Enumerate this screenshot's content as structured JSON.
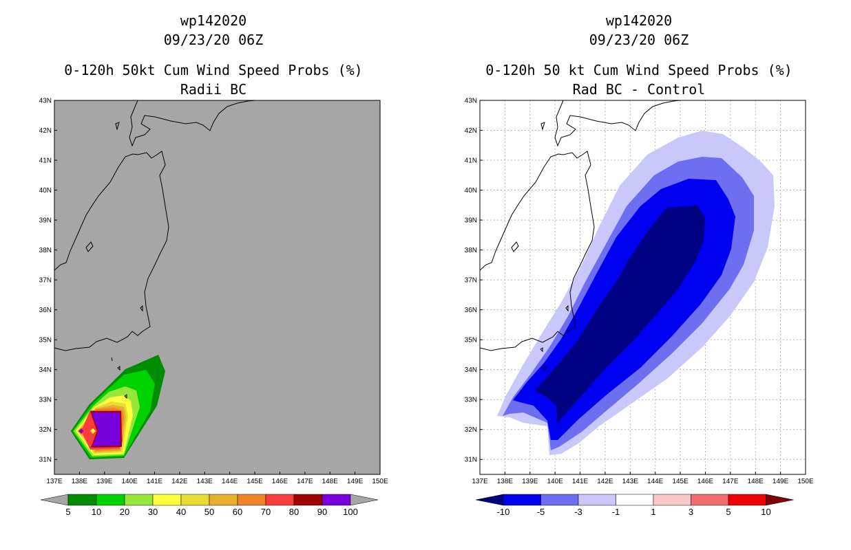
{
  "left_panel": {
    "title_line1": "wp142020",
    "title_line2": "09/23/20 06Z",
    "title_line3": "0-120h 50kt Cum Wind Speed Probs (%)",
    "title_line4": "Radii BC",
    "background_color": "#a6a6a6",
    "colorbar": {
      "labels": [
        "5",
        "10",
        "20",
        "30",
        "40",
        "50",
        "60",
        "70",
        "80",
        "90",
        "100"
      ],
      "colors": [
        "#008c00",
        "#00d200",
        "#96e63c",
        "#ffff3c",
        "#e6dc32",
        "#e6af2d",
        "#f08228",
        "#fa3c3c",
        "#a00000",
        "#7800dc"
      ]
    }
  },
  "right_panel": {
    "title_line1": "wp142020",
    "title_line2": "09/23/20 06Z",
    "title_line3": "0-120h 50 kt Cum Wind Speed Probs (%)",
    "title_line4": "Rad BC - Control",
    "background_color": "#ffffff",
    "colorbar": {
      "labels": [
        "-10",
        "-5",
        "-3",
        "-1",
        "1",
        "3",
        "5",
        "10"
      ],
      "colors": [
        "#000082",
        "#0000f0",
        "#6e6ef0",
        "#c8c8fa",
        "#ffffff",
        "#fac8c8",
        "#f06e6e",
        "#f00000",
        "#820000"
      ]
    }
  },
  "axes": {
    "lon_labels": [
      "137E",
      "138E",
      "139E",
      "140E",
      "141E",
      "142E",
      "143E",
      "144E",
      "145E",
      "146E",
      "147E",
      "148E",
      "149E",
      "150E"
    ],
    "lat_labels": [
      "31N",
      "32N",
      "33N",
      "34N",
      "35N",
      "36N",
      "37N",
      "38N",
      "39N",
      "40N",
      "41N",
      "42N",
      "43N"
    ],
    "lon_range": [
      137,
      150
    ],
    "lat_range": [
      30.5,
      43
    ]
  }
}
